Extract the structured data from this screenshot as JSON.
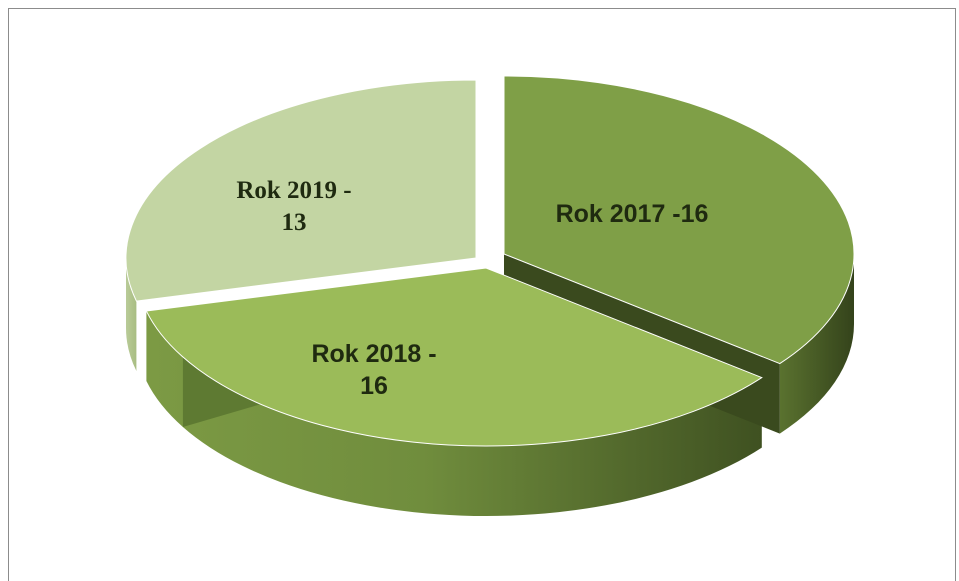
{
  "chart_data": {
    "type": "pie",
    "title": "",
    "categories": [
      "Rok 2017",
      "Rok 2018",
      "Rok 2019"
    ],
    "values": [
      16,
      16,
      13
    ],
    "labels": [
      [
        "Rok 2017 -16"
      ],
      [
        "Rok 2018 -",
        "16"
      ],
      [
        "Rok 2019 -",
        "13"
      ]
    ],
    "colors": [
      "#7f9f47",
      "#9bbb59",
      "#c3d5a3"
    ],
    "side_colors": [
      "#4b5f28",
      "#6d8a3a",
      "#c3d5a3"
    ],
    "three_d": true,
    "exploded": true,
    "legend": "none"
  }
}
